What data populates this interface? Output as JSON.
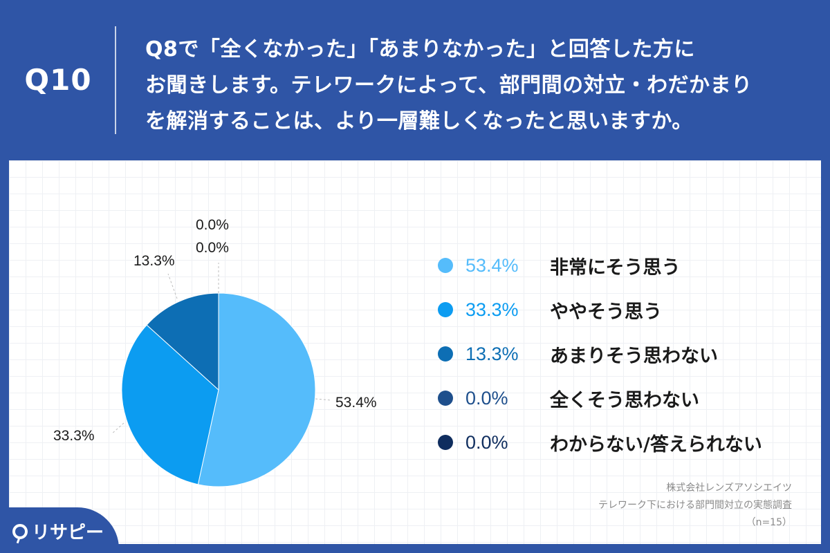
{
  "question": {
    "label": "Q10",
    "lines": [
      "Q8で「全くなかった」「あまりなかった」と回答した方に",
      "お聞きします。テレワークによって、部門間の対立・わだかまり",
      "を解消することは、より一層難しくなったと思いますか。"
    ]
  },
  "chart_data": {
    "type": "pie",
    "categories": [
      "非常にそう思う",
      "ややそう思う",
      "あまりそう思わない",
      "全くそう思わない",
      "わからない/答えられない"
    ],
    "values": [
      53.4,
      33.3,
      13.3,
      0.0,
      0.0
    ],
    "value_labels": [
      "53.4%",
      "33.3%",
      "13.3%",
      "0.0%",
      "0.0%"
    ],
    "colors": [
      "#55bcfb",
      "#0c9cf1",
      "#0d6eb4",
      "#1e4f8c",
      "#0f2d5e"
    ],
    "legend_position": "right",
    "start": "top, clockwise"
  },
  "source": {
    "company": "株式会社レンズアソシエイツ",
    "survey": "テレワーク下における部門間対立の実態調査",
    "sample": "（n=15）"
  },
  "logo": {
    "text": "リサピー"
  }
}
